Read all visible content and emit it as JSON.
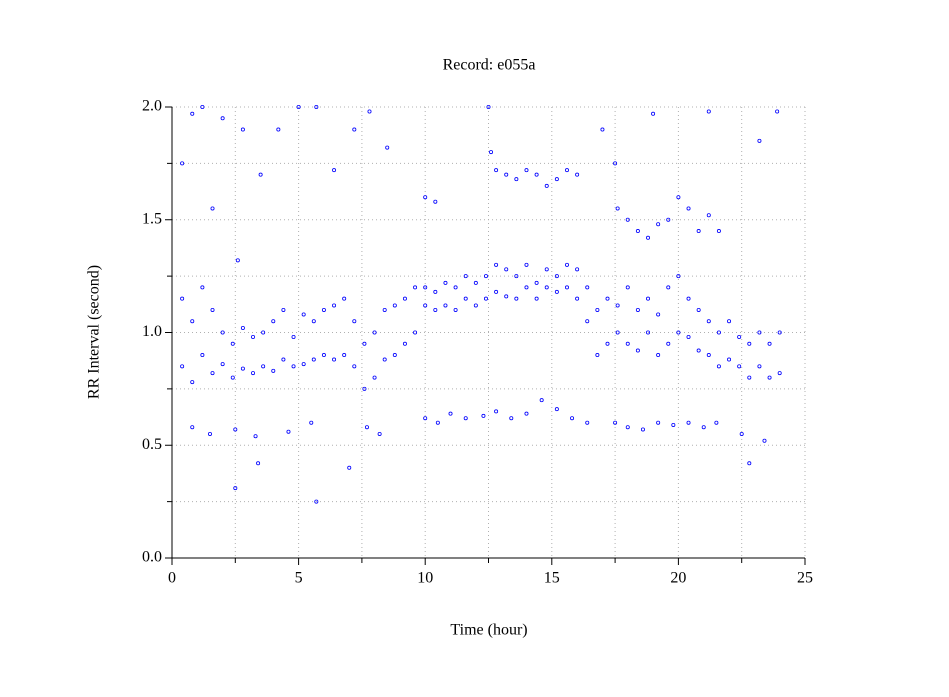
{
  "chart_data": {
    "type": "scatter",
    "title": "Record:  e055a",
    "x_label": "Time (hour)",
    "y_label": "RR Interval (second)",
    "xlim": [
      0,
      25
    ],
    "ylim": [
      0,
      2
    ],
    "xticks": [
      0,
      5,
      10,
      15,
      20,
      25
    ],
    "yticks": [
      {
        "value": 0,
        "label": "0.0"
      },
      0.5,
      {
        "value": 1,
        "label": "1.0"
      },
      1.5,
      {
        "value": 2,
        "label": "2.0"
      }
    ],
    "xminorticks": [
      2.5,
      7.5,
      12.5,
      17.5,
      22.5
    ],
    "yminorticks": [
      0.25,
      0.75,
      1.25,
      1.75
    ],
    "grid": true,
    "series": [
      {
        "color": "#0000ff",
        "x": [
          0.4,
          0.4,
          0.8,
          0.8,
          1.2,
          1.2,
          1.6,
          1.6,
          2.0,
          2.0,
          2.4,
          2.4,
          2.8,
          2.8,
          3.2,
          3.2,
          3.6,
          3.6,
          4.0,
          4.0,
          4.4,
          4.4,
          4.8,
          4.8,
          5.2,
          5.2,
          5.6,
          5.6,
          6.0,
          6.0,
          6.4,
          6.4,
          6.8,
          6.8,
          7.2,
          7.2,
          7.6,
          7.6,
          8.0,
          8.0,
          8.4,
          8.4,
          8.8,
          8.8,
          9.2,
          9.2,
          9.6,
          9.6,
          10.0,
          10.0,
          10.4,
          10.4,
          10.8,
          10.8,
          11.2,
          11.2,
          11.6,
          11.6,
          12.0,
          12.0,
          12.4,
          12.4,
          12.8,
          12.8,
          13.2,
          13.2,
          13.6,
          13.6,
          14.0,
          14.0,
          14.4,
          14.4,
          14.8,
          14.8,
          15.2,
          15.2,
          15.6,
          15.6,
          16.0,
          16.0,
          16.4,
          16.4,
          16.8,
          16.8,
          17.2,
          17.2,
          17.6,
          17.6,
          18.0,
          18.0,
          18.4,
          18.4,
          18.8,
          18.8,
          19.2,
          19.2,
          19.6,
          19.6,
          20.0,
          20.0,
          20.4,
          20.4,
          20.8,
          20.8,
          21.2,
          21.2,
          21.6,
          21.6,
          22.0,
          22.0,
          22.4,
          22.4,
          22.8,
          22.8,
          23.2,
          23.2,
          23.6,
          23.6,
          24.0,
          24.0,
          0.8,
          1.5,
          2.5,
          3.3,
          4.6,
          5.5,
          7.7,
          8.2,
          10.0,
          10.5,
          11.0,
          11.6,
          12.3,
          12.8,
          13.4,
          14.0,
          14.6,
          15.2,
          15.8,
          16.4,
          17.5,
          18.0,
          18.6,
          19.2,
          19.8,
          20.4,
          21.0,
          21.5,
          22.5,
          23.4,
          12.6,
          12.8,
          13.2,
          13.6,
          14.0,
          14.4,
          14.8,
          15.2,
          15.6,
          16.0,
          10.0,
          10.4,
          17.6,
          18.0,
          18.4,
          18.8,
          19.2,
          19.6,
          20.0,
          20.4,
          20.8,
          21.2,
          21.6,
          0.4,
          0.8,
          1.2,
          1.6,
          2.0,
          2.6,
          2.8,
          3.5,
          4.2,
          5.0,
          5.7,
          6.4,
          7.2,
          7.8,
          8.5,
          2.5,
          5.7,
          7.0,
          12.5,
          17.0,
          19.0,
          21.2,
          23.2,
          23.9,
          22.8,
          17.5,
          3.4
        ],
        "y": [
          1.15,
          0.85,
          1.05,
          0.78,
          1.2,
          0.9,
          1.1,
          0.82,
          1.0,
          0.86,
          0.95,
          0.8,
          1.02,
          0.84,
          0.98,
          0.82,
          1.0,
          0.85,
          1.05,
          0.83,
          1.1,
          0.88,
          0.98,
          0.85,
          1.08,
          0.86,
          1.05,
          0.88,
          1.1,
          0.9,
          1.12,
          0.88,
          1.15,
          0.9,
          1.05,
          0.85,
          0.95,
          0.75,
          1.0,
          0.8,
          1.1,
          0.88,
          1.12,
          0.9,
          1.15,
          0.95,
          1.2,
          1.0,
          1.2,
          1.12,
          1.18,
          1.1,
          1.22,
          1.12,
          1.2,
          1.1,
          1.25,
          1.15,
          1.22,
          1.12,
          1.25,
          1.15,
          1.3,
          1.18,
          1.28,
          1.16,
          1.25,
          1.15,
          1.3,
          1.2,
          1.22,
          1.15,
          1.28,
          1.2,
          1.25,
          1.18,
          1.3,
          1.2,
          1.28,
          1.15,
          1.2,
          1.05,
          1.1,
          0.9,
          1.15,
          0.95,
          1.12,
          1.0,
          1.2,
          0.95,
          1.1,
          0.92,
          1.15,
          1.0,
          1.08,
          0.9,
          1.2,
          0.95,
          1.25,
          1.0,
          1.15,
          0.98,
          1.1,
          0.92,
          1.05,
          0.9,
          1.0,
          0.85,
          1.05,
          0.88,
          0.98,
          0.85,
          0.95,
          0.8,
          1.0,
          0.85,
          0.95,
          0.8,
          1.0,
          0.82,
          0.58,
          0.55,
          0.57,
          0.54,
          0.56,
          0.6,
          0.58,
          0.55,
          0.62,
          0.6,
          0.64,
          0.62,
          0.63,
          0.65,
          0.62,
          0.64,
          0.7,
          0.66,
          0.62,
          0.6,
          0.6,
          0.58,
          0.57,
          0.6,
          0.59,
          0.6,
          0.58,
          0.6,
          0.55,
          0.52,
          1.8,
          1.72,
          1.7,
          1.68,
          1.72,
          1.7,
          1.65,
          1.68,
          1.72,
          1.7,
          1.6,
          1.58,
          1.55,
          1.5,
          1.45,
          1.42,
          1.48,
          1.5,
          1.6,
          1.55,
          1.45,
          1.52,
          1.45,
          1.75,
          1.97,
          2.0,
          1.55,
          1.95,
          1.32,
          1.9,
          1.7,
          1.9,
          2.0,
          2.0,
          1.72,
          1.9,
          1.98,
          1.82,
          0.31,
          0.25,
          0.4,
          2.0,
          1.9,
          1.97,
          1.98,
          1.85,
          1.98,
          0.42,
          1.75,
          0.42
        ]
      }
    ]
  }
}
